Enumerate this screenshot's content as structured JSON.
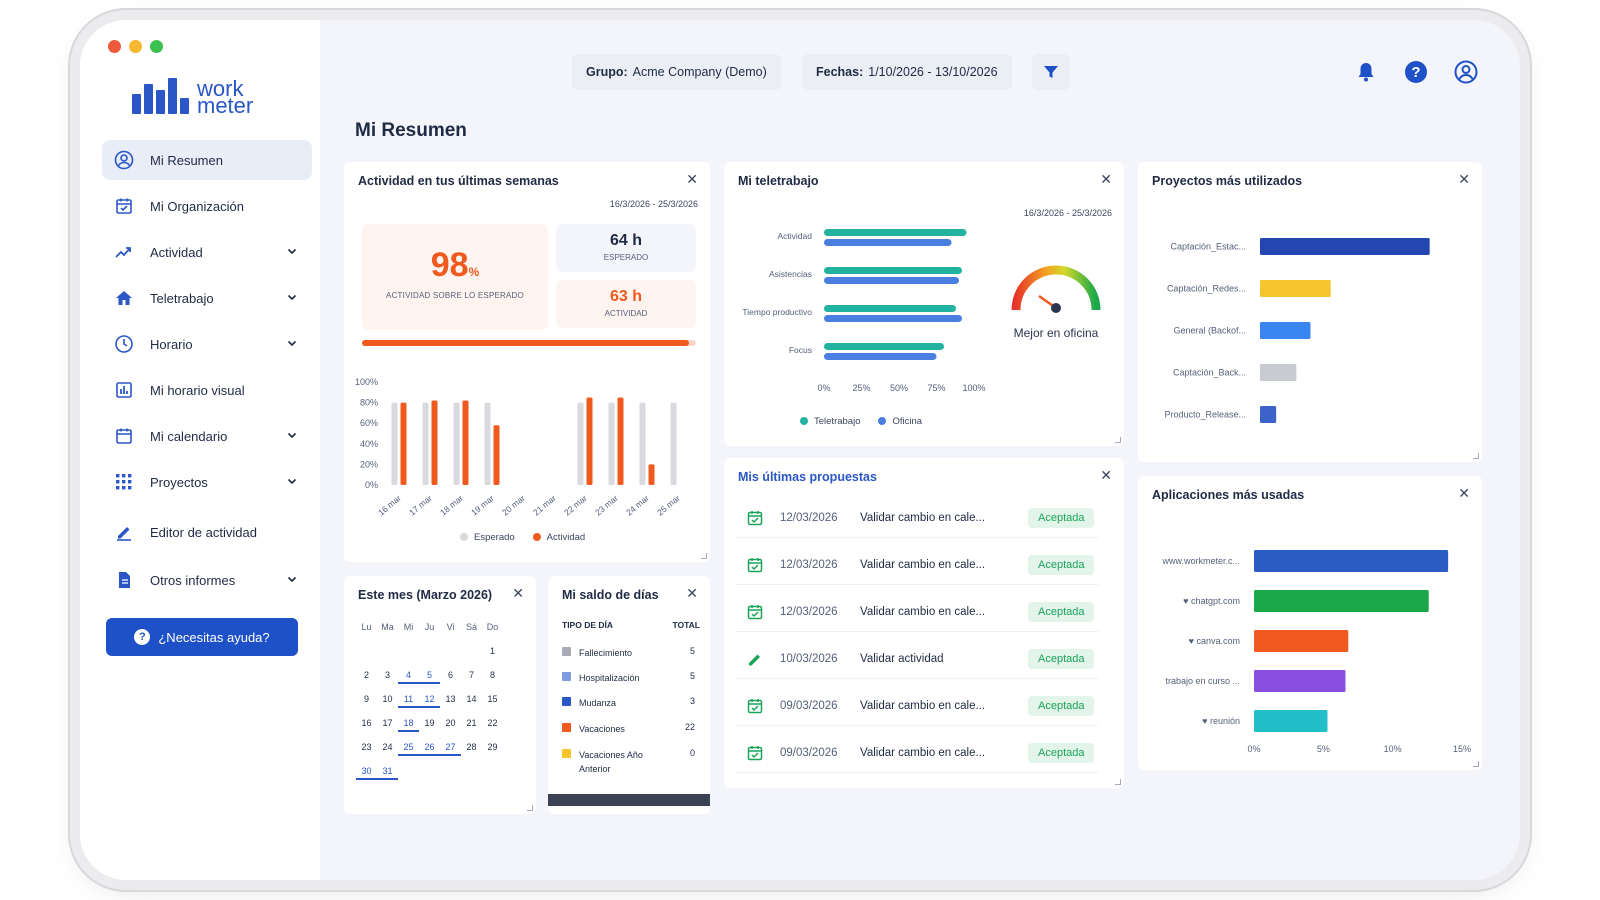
{
  "window_controls": {
    "close_color": "#ef5a3a",
    "min_color": "#f5b82e",
    "max_color": "#3cc04f"
  },
  "logo": {
    "line1": "work",
    "line2": "meter"
  },
  "sidebar": {
    "items": [
      {
        "label": "Mi Resumen",
        "icon": "user-circle-icon",
        "active": true,
        "expandable": false
      },
      {
        "label": "Mi Organización",
        "icon": "calendar-check-icon",
        "active": false,
        "expandable": false
      },
      {
        "label": "Actividad",
        "icon": "trend-up-icon",
        "active": false,
        "expandable": true
      },
      {
        "label": "Teletrabajo",
        "icon": "home-icon",
        "active": false,
        "expandable": true
      },
      {
        "label": "Horario",
        "icon": "clock-icon",
        "active": false,
        "expandable": true
      },
      {
        "label": "Mi horario visual",
        "icon": "chart-calendar-icon",
        "active": false,
        "expandable": false
      },
      {
        "label": "Mi calendario",
        "icon": "calendar-icon",
        "active": false,
        "expandable": true
      },
      {
        "label": "Proyectos",
        "icon": "grid-icon",
        "active": false,
        "expandable": true
      },
      {
        "label": "Editor de actividad",
        "icon": "pencil-icon",
        "active": false,
        "expandable": false
      },
      {
        "label": "Otros informes",
        "icon": "document-icon",
        "active": false,
        "expandable": true
      }
    ],
    "help_button": "¿Necesitas ayuda?"
  },
  "topbar": {
    "group_label": "Grupo:",
    "group_value": "Acme Company (Demo)",
    "dates_label": "Fechas:",
    "dates_value": "1/10/2026 - 13/10/2026"
  },
  "page_title": "Mi Resumen",
  "activity": {
    "title": "Actividad en tus últimas semanas",
    "range": "16/3/2026 - 25/3/2026",
    "percent": "98",
    "percent_sign": "%",
    "percent_label": "ACTIVIDAD SOBRE LO ESPERADO",
    "expected_value": "64 h",
    "expected_label": "ESPERADO",
    "actual_value": "63 h",
    "actual_label": "ACTIVIDAD",
    "progress": 0.98,
    "legend_expected": "Esperado",
    "legend_actual": "Actividad"
  },
  "telework": {
    "title": "Mi teletrabajo",
    "range": "16/3/2026 - 25/3/2026",
    "gauge_label": "Mejor en oficina",
    "legend_tele": "Teletrabajo",
    "legend_office": "Oficina"
  },
  "projects": {
    "title": "Proyectos más utilizados"
  },
  "apps": {
    "title": "Aplicaciones más usadas"
  },
  "proposals": {
    "title": "Mis últimas propuestas",
    "rows": [
      {
        "date": "12/03/2026",
        "text": "Validar cambio en cale...",
        "status": "Aceptada",
        "icon": "calendar-check-icon"
      },
      {
        "date": "12/03/2026",
        "text": "Validar cambio en cale...",
        "status": "Aceptada",
        "icon": "calendar-check-icon"
      },
      {
        "date": "12/03/2026",
        "text": "Validar cambio en cale...",
        "status": "Aceptada",
        "icon": "calendar-check-icon"
      },
      {
        "date": "10/03/2026",
        "text": "Validar actividad",
        "status": "Aceptada",
        "icon": "pencil-icon"
      },
      {
        "date": "09/03/2026",
        "text": "Validar cambio en cale...",
        "status": "Aceptada",
        "icon": "calendar-check-icon"
      },
      {
        "date": "09/03/2026",
        "text": "Validar cambio en cale...",
        "status": "Aceptada",
        "icon": "calendar-check-icon"
      }
    ]
  },
  "month": {
    "title": "Este mes (Marzo 2026)",
    "weekdays": [
      "Lu",
      "Ma",
      "Mi",
      "Ju",
      "Vi",
      "Sá",
      "Do"
    ],
    "start_offset": 6,
    "days": 31,
    "marked_days": [
      4,
      5,
      11,
      12,
      18,
      25,
      26,
      27,
      30,
      31
    ]
  },
  "balance": {
    "title": "Mi saldo de días",
    "col_type": "TIPO DE DÍA",
    "col_total": "TOTAL",
    "rows": [
      {
        "name": "Fallecimiento",
        "total": "5",
        "color": "#a9acb6"
      },
      {
        "name": "Hospitalización",
        "total": "5",
        "color": "#7d9be0"
      },
      {
        "name": "Mudanza",
        "total": "3",
        "color": "#2a56c6"
      },
      {
        "name": "Vacaciones",
        "total": "22",
        "color": "#f05a1e"
      },
      {
        "name": "Vacaciones Año Anterior",
        "total": "0",
        "color": "#f5c52e"
      }
    ]
  },
  "chart_data": [
    {
      "type": "bar",
      "categories": [
        "16 mar",
        "17 mar",
        "18 mar",
        "19 mar",
        "20 mar",
        "21 mar",
        "22 mar",
        "23 mar",
        "24 mar",
        "25 mar"
      ],
      "series": [
        {
          "name": "Esperado",
          "values": [
            80,
            80,
            80,
            80,
            0,
            0,
            80,
            80,
            80,
            80
          ],
          "color": "#d9dadf"
        },
        {
          "name": "Actividad",
          "values": [
            80,
            82,
            82,
            58,
            0,
            0,
            85,
            85,
            20,
            0
          ],
          "color": "#f05a1e"
        }
      ],
      "ylim": [
        0,
        100
      ],
      "yticks": [
        "0%",
        "20%",
        "40%",
        "60%",
        "80%",
        "100%"
      ],
      "legend": "bottom"
    },
    {
      "type": "bar",
      "orientation": "horizontal",
      "categories": [
        "Actividad",
        "Asistencias",
        "Tiempo productivo",
        "Focus"
      ],
      "series": [
        {
          "name": "Teletrabajo",
          "values": [
            95,
            92,
            88,
            80
          ],
          "color": "#22b3a0"
        },
        {
          "name": "Oficina",
          "values": [
            85,
            90,
            92,
            75
          ],
          "color": "#4a7ee0"
        }
      ],
      "xlim": [
        0,
        100
      ],
      "xticks": [
        "0%",
        "25%",
        "50%",
        "75%",
        "100%"
      ],
      "legend": "bottom"
    },
    {
      "type": "bar",
      "orientation": "horizontal",
      "categories": [
        "Captación_Estac...",
        "Captación_Redes...",
        "General (Backof...",
        "Captación_Back...",
        "Producto_Release..."
      ],
      "values": [
        42,
        17.5,
        12.5,
        9,
        4
      ],
      "colors": [
        "#2346b0",
        "#f5c52e",
        "#3a86f0",
        "#c9cbd2",
        "#3d63c8"
      ],
      "xlim": [
        0,
        50
      ],
      "xticks": [
        "0%",
        "10%",
        "20%",
        "30%",
        "40%",
        "50%"
      ]
    },
    {
      "type": "bar",
      "orientation": "horizontal",
      "categories": [
        "www.workmeter.c...",
        "♥ chatgpt.com",
        "♥ canva.com",
        "trabajo en curso ...",
        "♥ reunión"
      ],
      "values": [
        14,
        12.6,
        6.8,
        6.6,
        5.3
      ],
      "colors": [
        "#2a5cc4",
        "#1aa84a",
        "#f05a1e",
        "#8a4fe0",
        "#22bfc9"
      ],
      "xlim": [
        0,
        15
      ],
      "xticks": [
        "0%",
        "5%",
        "10%",
        "15%"
      ]
    }
  ]
}
